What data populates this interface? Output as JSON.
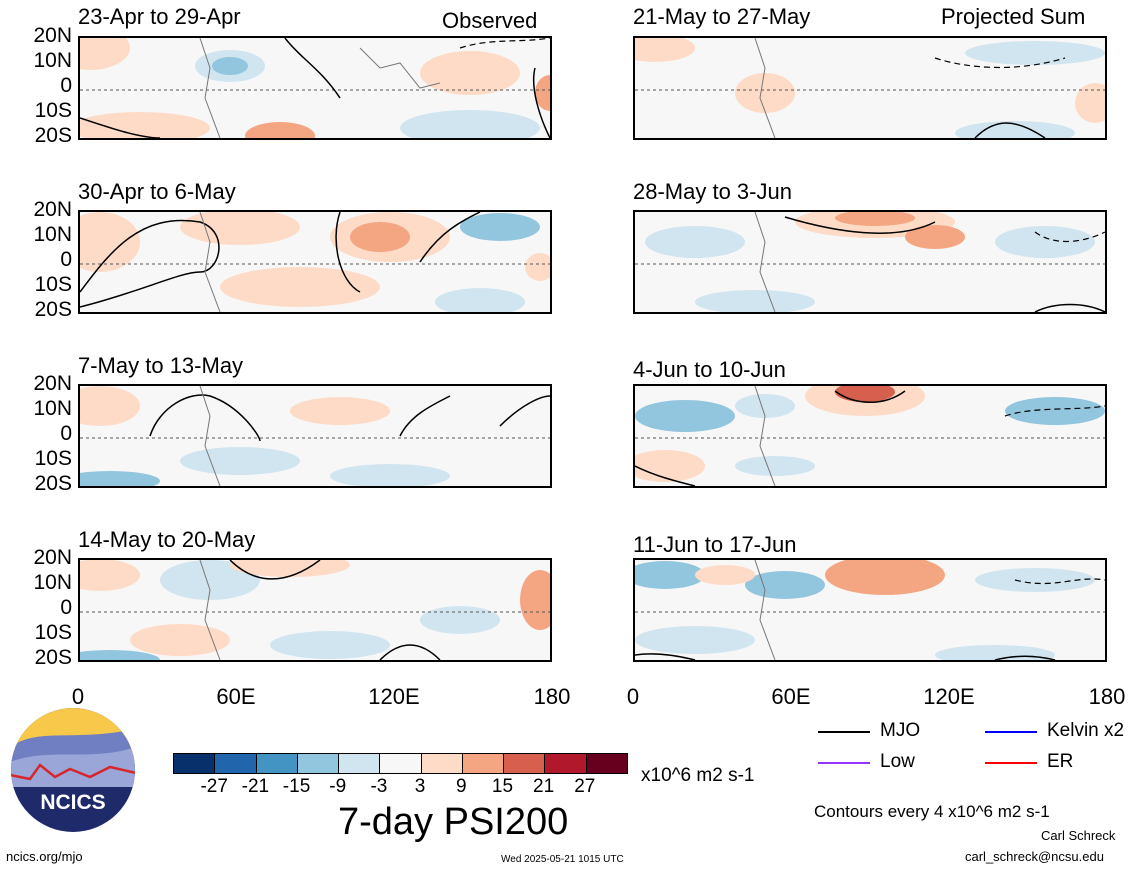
{
  "header": {
    "left_label": "Observed",
    "right_label": "Projected Sum"
  },
  "lat_labels": [
    "20N",
    "10N",
    "0",
    "10S",
    "20S"
  ],
  "lon_labels": [
    "0",
    "60E",
    "120E",
    "180"
  ],
  "panels": [
    {
      "title": "23-Apr to 29-Apr"
    },
    {
      "title": "30-Apr to 6-May"
    },
    {
      "title": "7-May to 13-May"
    },
    {
      "title": "14-May to 20-May"
    },
    {
      "title": "21-May to 27-May"
    },
    {
      "title": "28-May to 3-Jun"
    },
    {
      "title": "4-Jun to 10-Jun"
    },
    {
      "title": "11-Jun to 17-Jun"
    }
  ],
  "colorbar": {
    "colors": [
      "#08306b",
      "#2166ac",
      "#4393c3",
      "#92c5de",
      "#d1e5f0",
      "#f7f7f7",
      "#fddbc7",
      "#f4a582",
      "#d6604d",
      "#b2182b",
      "#67001f"
    ],
    "labels": [
      "-27",
      "-21",
      "-15",
      "-9",
      "-3",
      "3",
      "9",
      "15",
      "21",
      "27"
    ],
    "units": "x10^6 m2 s-1"
  },
  "main_title": "7-day PSI200",
  "legend": [
    {
      "label": "MJO",
      "color": "#000000"
    },
    {
      "label": "Kelvin x2",
      "color": "#0000ff"
    },
    {
      "label": "Low",
      "color": "#9933ff"
    },
    {
      "label": "ER",
      "color": "#ff0000"
    }
  ],
  "contour_note": "Contours every 4 x10^6 m2 s-1",
  "author": "Carl Schreck",
  "email": "carl_schreck@ncsu.edu",
  "logo_text": "NCICS",
  "url": "ncics.org/mjo",
  "timestamp": "Wed 2025-05-21 1015 UTC"
}
